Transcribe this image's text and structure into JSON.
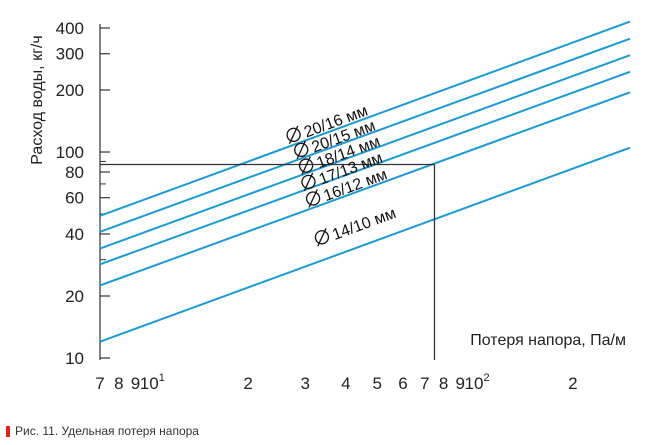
{
  "caption": {
    "text": "Рис. 11. Удельная потеря напора",
    "marker_color": "#e2231a"
  },
  "chart_data": {
    "type": "line",
    "x_scale": "log",
    "y_scale": "log",
    "xlabel": "Потеря напора, Па/м",
    "ylabel": "Расход воды, кг/ч",
    "xlim": [
      7,
      300
    ],
    "ylim": [
      10,
      400
    ],
    "grid": false,
    "line_color": "#1b9ad6",
    "reference_color": "#333333",
    "x_ticks": [
      {
        "value": 7,
        "label": "7"
      },
      {
        "value": 8,
        "label": "8"
      },
      {
        "value": 9,
        "label": "9"
      },
      {
        "value": 10,
        "label": "10",
        "sup": "1"
      },
      {
        "value": 20,
        "label": "2"
      },
      {
        "value": 30,
        "label": "3"
      },
      {
        "value": 40,
        "label": "4"
      },
      {
        "value": 50,
        "label": "5"
      },
      {
        "value": 60,
        "label": "6"
      },
      {
        "value": 70,
        "label": "7"
      },
      {
        "value": 80,
        "label": "8"
      },
      {
        "value": 90,
        "label": "9"
      },
      {
        "value": 100,
        "label": "10",
        "sup": "2"
      },
      {
        "value": 200,
        "label": "2"
      }
    ],
    "y_ticks": [
      {
        "value": 10,
        "label": "10"
      },
      {
        "value": 20,
        "label": "20"
      },
      {
        "value": 40,
        "label": "40"
      },
      {
        "value": 60,
        "label": "60"
      },
      {
        "value": 80,
        "label": "80"
      },
      {
        "value": 100,
        "label": "100"
      },
      {
        "value": 200,
        "label": "200"
      },
      {
        "value": 300,
        "label": "300"
      },
      {
        "value": 400,
        "label": "400"
      }
    ],
    "y_minor_ticks": [
      30,
      50,
      70,
      90
    ],
    "series": [
      {
        "name": "20/16 мм",
        "x": [
          7,
          300
        ],
        "y": [
          49,
          430
        ],
        "label_at": [
          27,
          110
        ]
      },
      {
        "name": "20/15 мм",
        "x": [
          7,
          300
        ],
        "y": [
          41,
          355
        ],
        "label_at": [
          28.5,
          93
        ]
      },
      {
        "name": "18/14 мм",
        "x": [
          7,
          300
        ],
        "y": [
          34,
          295
        ],
        "label_at": [
          29.5,
          78
        ]
      },
      {
        "name": "17/13 мм",
        "x": [
          7,
          300
        ],
        "y": [
          28.5,
          245
        ],
        "label_at": [
          30,
          65
        ]
      },
      {
        "name": "16/12 мм",
        "x": [
          7,
          300
        ],
        "y": [
          22.5,
          195
        ],
        "label_at": [
          31,
          54
        ]
      },
      {
        "name": "14/10 мм",
        "x": [
          7,
          300
        ],
        "y": [
          12,
          105
        ],
        "label_at": [
          33,
          35
        ]
      }
    ],
    "reference": {
      "x": 75,
      "y": 87
    }
  }
}
